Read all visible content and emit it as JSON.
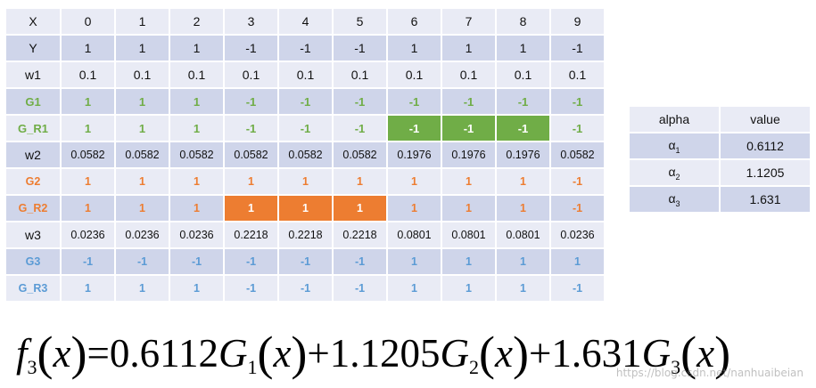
{
  "table": {
    "rows": [
      {
        "label": "X",
        "style": "plain",
        "values": [
          "0",
          "1",
          "2",
          "3",
          "4",
          "5",
          "6",
          "7",
          "8",
          "9"
        ],
        "highlight": [],
        "small": false
      },
      {
        "label": "Y",
        "style": "plain",
        "values": [
          "1",
          "1",
          "1",
          "-1",
          "-1",
          "-1",
          "1",
          "1",
          "1",
          "-1"
        ],
        "highlight": [],
        "small": false
      },
      {
        "label": "w1",
        "style": "plain",
        "values": [
          "0.1",
          "0.1",
          "0.1",
          "0.1",
          "0.1",
          "0.1",
          "0.1",
          "0.1",
          "0.1",
          "0.1"
        ],
        "highlight": [],
        "small": false
      },
      {
        "label": "G1",
        "style": "green",
        "values": [
          "1",
          "1",
          "1",
          "-1",
          "-1",
          "-1",
          "-1",
          "-1",
          "-1",
          "-1"
        ],
        "highlight": [],
        "small": false
      },
      {
        "label": "G_R1",
        "style": "green",
        "values": [
          "1",
          "1",
          "1",
          "-1",
          "-1",
          "-1",
          "-1",
          "-1",
          "-1",
          "-1"
        ],
        "highlight": [
          6,
          7,
          8
        ],
        "small": false
      },
      {
        "label": "w2",
        "style": "plain",
        "values": [
          "0.0582",
          "0.0582",
          "0.0582",
          "0.0582",
          "0.0582",
          "0.0582",
          "0.1976",
          "0.1976",
          "0.1976",
          "0.0582"
        ],
        "highlight": [],
        "small": true
      },
      {
        "label": "G2",
        "style": "orange",
        "values": [
          "1",
          "1",
          "1",
          "1",
          "1",
          "1",
          "1",
          "1",
          "1",
          "-1"
        ],
        "highlight": [],
        "small": false
      },
      {
        "label": "G_R2",
        "style": "orange",
        "values": [
          "1",
          "1",
          "1",
          "1",
          "1",
          "1",
          "1",
          "1",
          "1",
          "-1"
        ],
        "highlight": [
          3,
          4,
          5
        ],
        "small": false
      },
      {
        "label": "w3",
        "style": "plain",
        "values": [
          "0.0236",
          "0.0236",
          "0.0236",
          "0.2218",
          "0.2218",
          "0.2218",
          "0.0801",
          "0.0801",
          "0.0801",
          "0.0236"
        ],
        "highlight": [],
        "small": true
      },
      {
        "label": "G3",
        "style": "blue",
        "values": [
          "-1",
          "-1",
          "-1",
          "-1",
          "-1",
          "-1",
          "1",
          "1",
          "1",
          "1"
        ],
        "highlight": [],
        "small": false
      },
      {
        "label": "G_R3",
        "style": "blue",
        "values": [
          "1",
          "1",
          "1",
          "-1",
          "-1",
          "-1",
          "1",
          "1",
          "1",
          "-1"
        ],
        "highlight": [],
        "small": false
      }
    ]
  },
  "alpha_table": {
    "headers": [
      "alpha",
      "value"
    ],
    "rows": [
      {
        "symbol": "α",
        "sub": "1",
        "value": "0.6112"
      },
      {
        "symbol": "α",
        "sub": "2",
        "value": "1.1205"
      },
      {
        "symbol": "α",
        "sub": "3",
        "value": "1.631"
      }
    ]
  },
  "formula": {
    "f": "f",
    "f_sub": "3",
    "x": "x",
    "equals": "=",
    "plus": "+",
    "terms": [
      {
        "coef": "0.6112",
        "g": "G",
        "g_sub": "1"
      },
      {
        "coef": "1.1205",
        "g": "G",
        "g_sub": "2"
      },
      {
        "coef": "1.631",
        "g": "G",
        "g_sub": "3"
      }
    ]
  },
  "watermark": "https://blog.csdn.net/nanhuaibeian",
  "colors": {
    "green": "#70ad47",
    "orange": "#ed7d31",
    "blue": "#5b9bd5",
    "row_light": "#e9ebf5",
    "row_dark": "#cfd5ea"
  }
}
